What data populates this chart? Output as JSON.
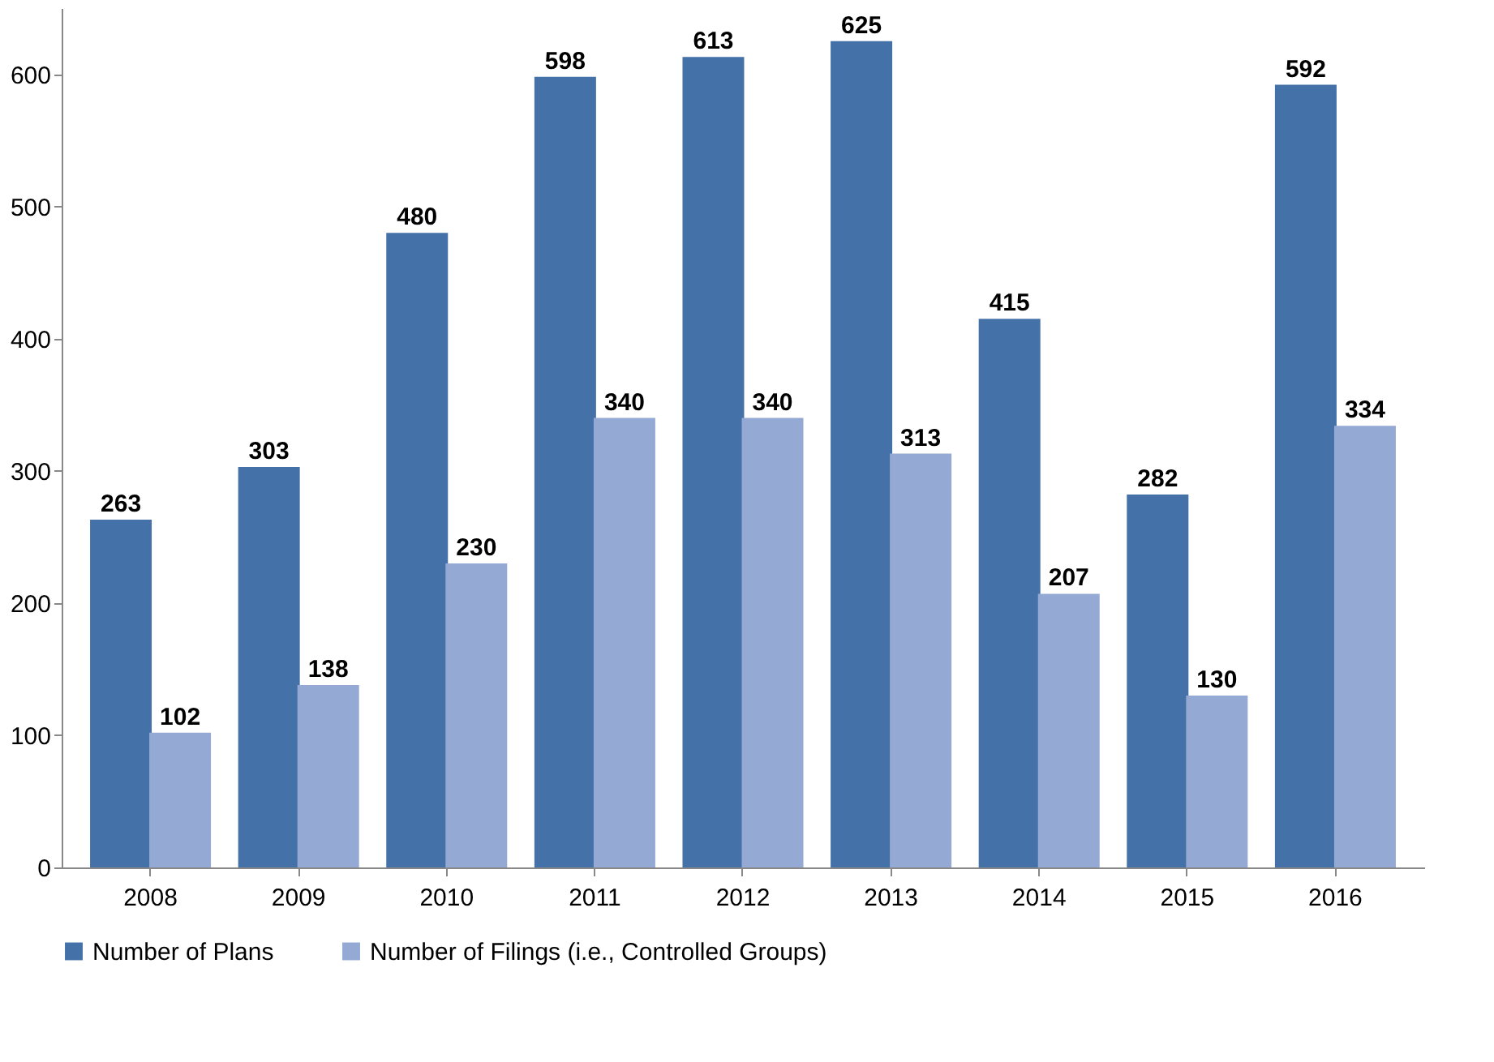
{
  "chart_data": {
    "type": "bar",
    "categories": [
      "2008",
      "2009",
      "2010",
      "2011",
      "2012",
      "2013",
      "2014",
      "2015",
      "2016"
    ],
    "series": [
      {
        "name": "Number of Plans",
        "color": "#4472a8",
        "values": [
          263,
          303,
          480,
          598,
          613,
          625,
          415,
          282,
          592
        ]
      },
      {
        "name": "Number of Filings (i.e., Controlled Groups)",
        "color": "#94aad4",
        "values": [
          102,
          138,
          230,
          340,
          340,
          313,
          207,
          130,
          334
        ]
      }
    ],
    "ylim": [
      0,
      650
    ],
    "yticks": [
      0,
      100,
      200,
      300,
      400,
      500,
      600
    ],
    "grid": false,
    "legend": "bottom",
    "data_labels": true
  }
}
